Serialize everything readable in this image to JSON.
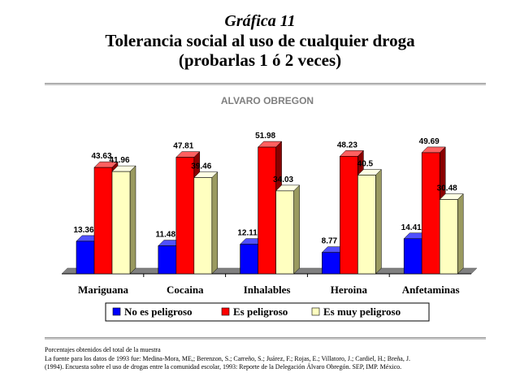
{
  "figure": {
    "label": "Gráfica 11",
    "title_line1": "Tolerancia social al uso de cualquier droga",
    "title_line2": "(probarlas 1 ó 2 veces)"
  },
  "chart_data": {
    "type": "bar",
    "title": "ALVARO OBREGON",
    "categories": [
      "Mariguana",
      "Cocaina",
      "Inhalables",
      "Heroina",
      "Anfetaminas"
    ],
    "series": [
      {
        "name": "No es peligroso",
        "values": [
          13.36,
          11.48,
          12.11,
          8.77,
          14.41
        ],
        "labels": [
          "13.36",
          "11.48",
          "12.11",
          "8.77",
          "14.41"
        ],
        "color": "#0000ff"
      },
      {
        "name": "Es peligroso",
        "values": [
          43.63,
          47.81,
          51.98,
          48.23,
          49.69
        ],
        "labels": [
          "43.63",
          "47.81",
          "51.98",
          "48.23",
          "49.69"
        ],
        "color": "#ff0000"
      },
      {
        "name": "Es muy peligroso",
        "values": [
          41.96,
          39.46,
          34.03,
          40.5,
          30.48
        ],
        "labels": [
          "41.96",
          "39.46",
          "34.03",
          "40.5",
          "30.48"
        ],
        "color": "#ffffc0"
      }
    ],
    "grid": false,
    "legend_position": "bottom",
    "style": "3d"
  },
  "notes": {
    "line1": "Porcentajes obtenidos del total de la muestra",
    "line2": "La fuente para los datos de 1993 fue: Medina-Mora, ME,; Berenzon, S.; Carreño, S.; Juárez, F.; Rojas, E.; Villatoro, J.; Cardiel, H.; Breña, J.",
    "line3": "(1994). Encuesta sobre el uso de drogas entre la comunidad escolar, 1993: Reporte de la Delegación Álvaro Obregón. SEP, IMP. México."
  }
}
